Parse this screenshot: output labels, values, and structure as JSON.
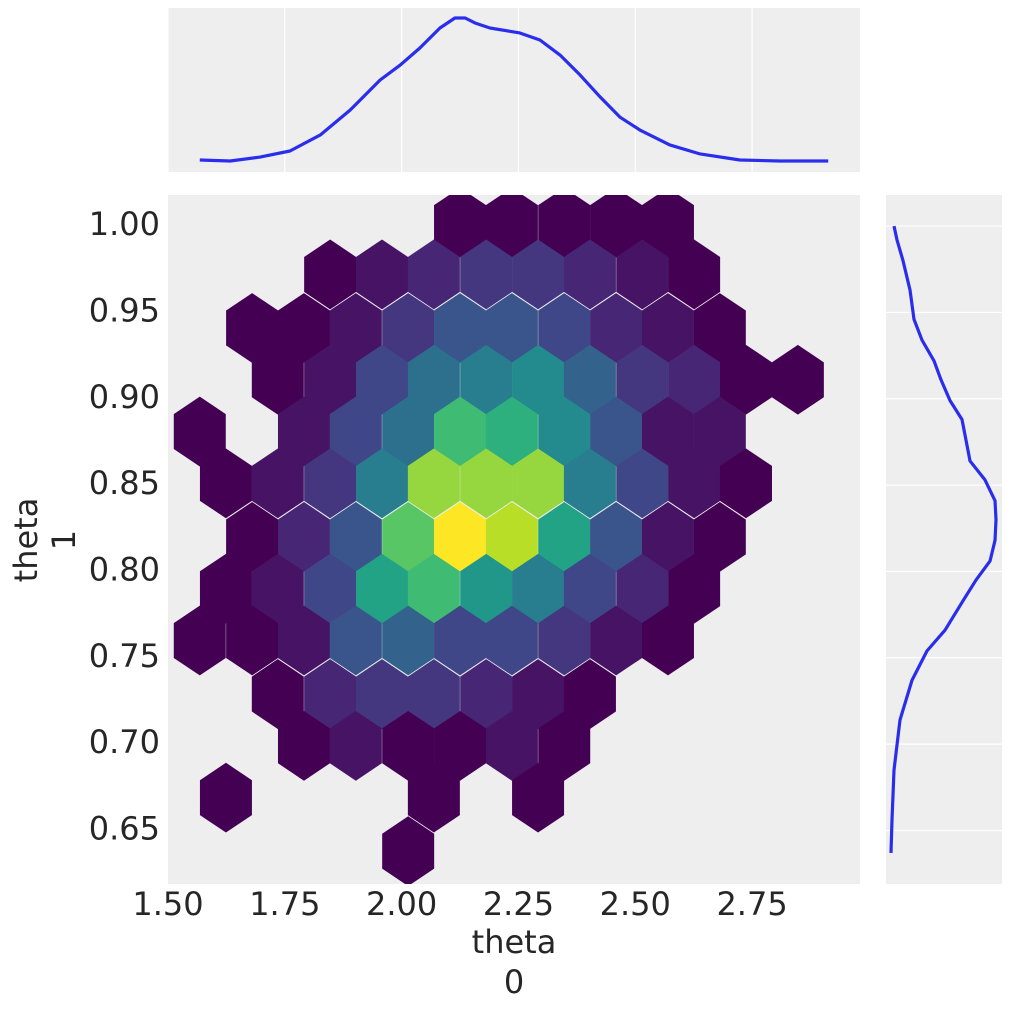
{
  "chart_data": [
    {
      "type": "hexbin",
      "xlabel": [
        "theta",
        "0"
      ],
      "ylabel": [
        "theta",
        "1"
      ],
      "colormap": "viridis",
      "x": [
        2.125,
        2.236,
        2.348,
        2.459,
        2.57,
        1.847,
        1.958,
        2.069,
        2.181,
        2.292,
        2.403,
        2.515,
        2.626,
        1.68,
        1.791,
        1.902,
        2.014,
        2.125,
        2.236,
        2.348,
        2.459,
        2.57,
        2.681,
        1.735,
        1.847,
        1.958,
        2.069,
        2.181,
        2.292,
        2.403,
        2.515,
        2.626,
        2.737,
        2.848,
        1.568,
        1.791,
        1.902,
        2.014,
        2.125,
        2.236,
        2.348,
        2.459,
        2.57,
        2.681,
        1.624,
        1.735,
        1.847,
        1.958,
        2.069,
        2.181,
        2.292,
        2.403,
        2.515,
        2.626,
        2.737,
        1.68,
        1.791,
        1.902,
        2.014,
        2.125,
        2.236,
        2.348,
        2.459,
        2.57,
        2.681,
        1.624,
        1.735,
        1.847,
        1.958,
        2.069,
        2.181,
        2.292,
        2.403,
        2.515,
        2.626,
        1.568,
        1.68,
        1.791,
        1.902,
        2.014,
        2.125,
        2.236,
        2.348,
        2.459,
        2.57,
        1.735,
        1.847,
        1.958,
        2.069,
        2.181,
        2.292,
        2.403,
        1.791,
        1.902,
        2.014,
        2.125,
        2.236,
        2.348,
        1.624,
        2.069,
        2.292,
        2.014
      ],
      "y": [
        1.002,
        1.002,
        1.002,
        1.002,
        1.002,
        0.972,
        0.972,
        0.972,
        0.972,
        0.972,
        0.972,
        0.972,
        0.972,
        0.941,
        0.941,
        0.941,
        0.941,
        0.941,
        0.941,
        0.941,
        0.941,
        0.941,
        0.941,
        0.911,
        0.911,
        0.911,
        0.911,
        0.911,
        0.911,
        0.911,
        0.911,
        0.911,
        0.911,
        0.911,
        0.881,
        0.881,
        0.881,
        0.881,
        0.881,
        0.881,
        0.881,
        0.881,
        0.881,
        0.881,
        0.851,
        0.851,
        0.851,
        0.851,
        0.851,
        0.851,
        0.851,
        0.851,
        0.851,
        0.851,
        0.851,
        0.82,
        0.82,
        0.82,
        0.82,
        0.82,
        0.82,
        0.82,
        0.82,
        0.82,
        0.82,
        0.79,
        0.79,
        0.79,
        0.79,
        0.79,
        0.79,
        0.79,
        0.79,
        0.79,
        0.79,
        0.76,
        0.76,
        0.76,
        0.76,
        0.76,
        0.76,
        0.76,
        0.76,
        0.76,
        0.76,
        0.729,
        0.729,
        0.729,
        0.729,
        0.729,
        0.729,
        0.729,
        0.699,
        0.699,
        0.699,
        0.699,
        0.699,
        0.699,
        0.669,
        0.669,
        0.669,
        0.638
      ],
      "counts": [
        1,
        1,
        1,
        1,
        1,
        1,
        2,
        3,
        4,
        4,
        3,
        2,
        1,
        1,
        1,
        2,
        4,
        6,
        6,
        5,
        3,
        2,
        1,
        1,
        2,
        5,
        8,
        9,
        10,
        7,
        4,
        3,
        1,
        1,
        1,
        2,
        5,
        8,
        14,
        13,
        10,
        6,
        2,
        2,
        1,
        2,
        4,
        9,
        17,
        17,
        17,
        9,
        5,
        2,
        1,
        1,
        3,
        6,
        15,
        20,
        18,
        12,
        6,
        2,
        1,
        1,
        2,
        5,
        12,
        14,
        11,
        9,
        5,
        3,
        1,
        1,
        1,
        2,
        6,
        7,
        5,
        5,
        4,
        2,
        1,
        1,
        3,
        4,
        4,
        3,
        2,
        1,
        1,
        2,
        1,
        1,
        2,
        1,
        1,
        1,
        1,
        1
      ],
      "xlim": [
        1.5,
        2.981
      ],
      "ylim": [
        0.619,
        1.018
      ],
      "xticks": [
        {
          "value": 1.5,
          "label": "1.50"
        },
        1.75,
        {
          "value": 2.0,
          "label": "2.00"
        },
        2.25,
        {
          "value": 2.5,
          "label": "2.50"
        },
        2.75
      ],
      "yticks": [
        0.65,
        {
          "value": 0.7,
          "label": "0.70"
        },
        0.75,
        {
          "value": 0.8,
          "label": "0.80"
        },
        0.85,
        {
          "value": 0.9,
          "label": "0.90"
        },
        0.95,
        {
          "value": 1.0,
          "label": "1.00"
        }
      ],
      "grid": false
    },
    {
      "type": "line",
      "orientation": "horizontal",
      "color": "#2a2eec",
      "grid": true,
      "x": [
        1.568,
        1.633,
        1.697,
        1.761,
        1.826,
        1.89,
        1.954,
        1.997,
        2.039,
        2.082,
        2.114,
        2.136,
        2.157,
        2.189,
        2.253,
        2.296,
        2.339,
        2.382,
        2.425,
        2.467,
        2.51,
        2.574,
        2.639,
        2.724,
        2.81,
        2.913
      ],
      "values": [
        0.053,
        0.042,
        0.086,
        0.153,
        0.331,
        0.608,
        0.941,
        1.107,
        1.296,
        1.518,
        1.629,
        1.629,
        1.574,
        1.518,
        1.463,
        1.385,
        1.218,
        0.996,
        0.752,
        0.53,
        0.386,
        0.22,
        0.12,
        0.053,
        0.042,
        0.042
      ],
      "ylim": [
        -0.08,
        1.74
      ]
    },
    {
      "type": "line",
      "orientation": "vertical",
      "color": "#2a2eec",
      "grid": true,
      "y": [
        1.0,
        0.992,
        0.98,
        0.963,
        0.946,
        0.934,
        0.922,
        0.911,
        0.899,
        0.888,
        0.876,
        0.864,
        0.853,
        0.841,
        0.83,
        0.818,
        0.806,
        0.795,
        0.783,
        0.766,
        0.754,
        0.737,
        0.714,
        0.685,
        0.656,
        0.637
      ],
      "values": [
        0.197,
        0.383,
        0.755,
        1.19,
        1.438,
        1.934,
        2.679,
        3.114,
        3.672,
        4.417,
        4.666,
        4.914,
        5.845,
        6.466,
        6.528,
        6.466,
        6.155,
        5.286,
        4.479,
        3.362,
        2.245,
        1.314,
        0.569,
        0.197,
        0.072,
        0.01
      ],
      "xlim": [
        -0.3,
        6.9
      ]
    }
  ]
}
